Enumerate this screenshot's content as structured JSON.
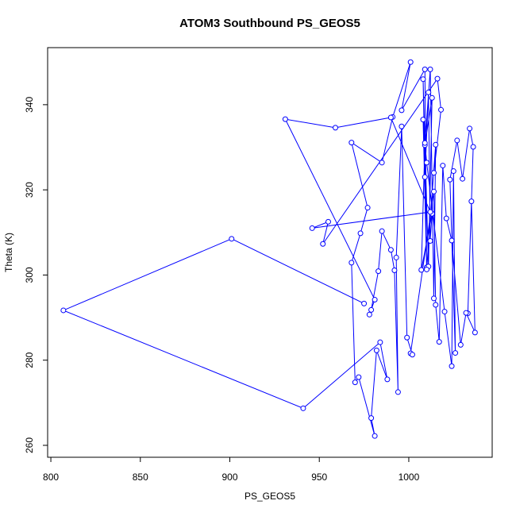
{
  "chart_data": {
    "type": "line",
    "title": "ATOM3 Southbound PS_GEOS5",
    "x_label": "PS_GEOS5",
    "y_label": "Theta (K)",
    "x": [
      975,
      901,
      807,
      941,
      984,
      988,
      982,
      979,
      981,
      972,
      970,
      968,
      973,
      977,
      968,
      985,
      991,
      1001,
      996,
      1009,
      1010,
      1008,
      1011,
      1013,
      1009,
      1012,
      1014,
      1015,
      1010,
      1008,
      1009,
      1011,
      1012,
      1013,
      1007,
      1009,
      1010,
      1020,
      1024,
      1025,
      1026,
      1023,
      1027,
      1030,
      1034,
      1036,
      1033,
      1035,
      1037,
      1032,
      1029,
      1024,
      1021,
      1019,
      1017,
      1015,
      1014,
      1001,
      1002,
      999,
      996,
      993,
      994,
      992,
      990,
      985,
      983,
      979,
      978,
      981,
      931,
      959,
      990,
      1012,
      946,
      955,
      952,
      1016,
      1018,
      1014
    ],
    "series": [
      {
        "name": "Theta",
        "color": "#0000ff",
        "values": [
          293.3,
          308.5,
          291.7,
          268.7,
          284.2,
          275.5,
          282.3,
          266.4,
          262.2,
          276.0,
          274.8,
          302.9,
          309.8,
          315.8,
          331.1,
          326.4,
          337.1,
          350.0,
          338.7,
          348.3,
          301.8,
          346.0,
          302.0,
          341.6,
          330.5,
          348.3,
          294.5,
          330.6,
          301.3,
          336.5,
          323.0,
          342.9,
          308.0,
          314.4,
          301.2,
          331.0,
          326.4,
          291.4,
          278.6,
          324.4,
          281.7,
          322.4,
          331.6,
          322.6,
          334.4,
          330.1,
          291.0,
          317.3,
          286.5,
          291.1,
          283.6,
          308.1,
          313.3,
          325.7,
          284.3,
          293.0,
          319.6,
          281.6,
          281.3,
          285.3,
          334.9,
          304.1,
          272.5,
          301.1,
          305.9,
          310.3,
          300.9,
          291.8,
          290.7,
          294.2,
          336.6,
          334.6,
          337.0,
          314.8,
          311.0,
          312.5,
          307.3,
          346.1,
          338.8,
          324.0
        ]
      }
    ],
    "xlim": [
      798.2,
      1046.6
    ],
    "ylim": [
      257.2,
      353.4
    ],
    "xticks": [
      800,
      850,
      900,
      950,
      1000
    ],
    "yticks": [
      260,
      280,
      300,
      320,
      340
    ]
  }
}
